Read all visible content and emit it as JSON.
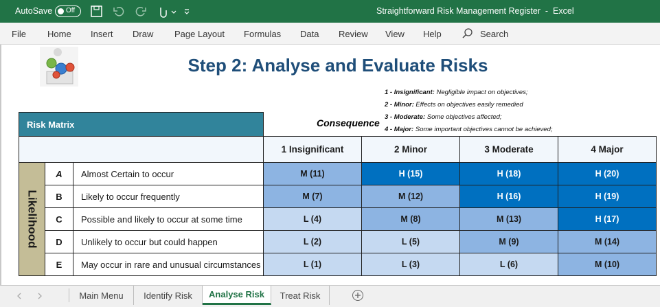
{
  "titlebar": {
    "autosave": "AutoSave",
    "toggle": "Off",
    "title": "Straightforward Risk Management Register  -  Excel"
  },
  "menu": {
    "items": [
      "File",
      "Home",
      "Insert",
      "Draw",
      "Page Layout",
      "Formulas",
      "Data",
      "Review",
      "View",
      "Help"
    ],
    "search": "Search"
  },
  "sheet": {
    "title": "Step 2: Analyse and Evaluate Risks",
    "legend": [
      {
        "term": "1 - Insignificant:",
        "desc": "Negligible impact on objectives;"
      },
      {
        "term": "2 - Minor:",
        "desc": "Effects on objectives easily remedied"
      },
      {
        "term": "3 - Moderate:",
        "desc": "Some objectives affected;"
      },
      {
        "term": "4 - Major:",
        "desc": "Some important objectives cannot be achieved;"
      }
    ],
    "matrix": {
      "header": "Risk Matrix",
      "consequence": "Consequence",
      "likelihood": "Likelihood",
      "columns": [
        "1 Insignificant",
        "2 Minor",
        "3 Moderate",
        "4 Major"
      ],
      "rows": [
        {
          "letter": "A",
          "desc": "Almost Certain to occur",
          "cells": [
            "M (11)",
            "H (15)",
            "H (18)",
            "H (20)"
          ]
        },
        {
          "letter": "B",
          "desc": "Likely to occur frequently",
          "cells": [
            "M (7)",
            "M (12)",
            "H (16)",
            "H (19)"
          ]
        },
        {
          "letter": "C",
          "desc": "Possible and likely to occur at some time",
          "cells": [
            "L (4)",
            "M (8)",
            "M (13)",
            "H (17)"
          ]
        },
        {
          "letter": "D",
          "desc": "Unlikely to occur but could happen",
          "cells": [
            "L (2)",
            "L (5)",
            "M (9)",
            "M (14)"
          ]
        },
        {
          "letter": "E",
          "desc": "May occur in rare and unusual circumstances",
          "cells": [
            "L (1)",
            "L (3)",
            "L (6)",
            "M (10)"
          ]
        }
      ]
    }
  },
  "tabs": {
    "items": [
      "Main Menu",
      "Identify Risk",
      "Analyse Risk",
      "Treat Risk"
    ],
    "active": 2
  }
}
